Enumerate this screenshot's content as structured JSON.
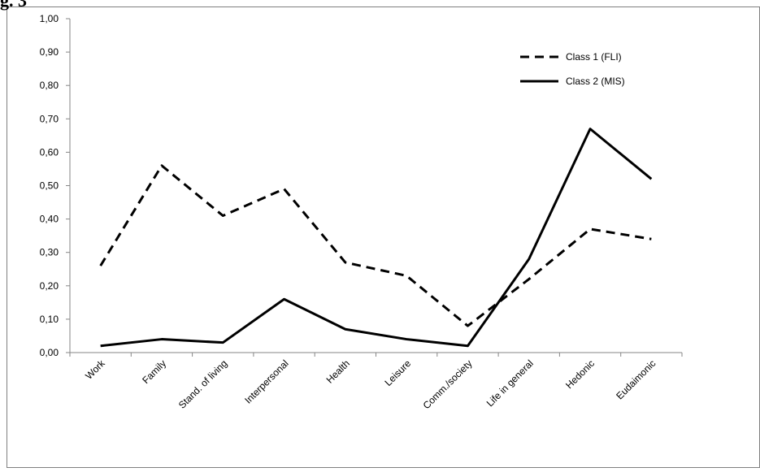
{
  "figure_label": "g. 3",
  "chart_data": {
    "type": "line",
    "categories": [
      "Work",
      "Family",
      "Stand. of living",
      "Interpersonal",
      "Health",
      "Leisure",
      "Comm./society",
      "Life in general",
      "Hedonic",
      "Eudaimonic"
    ],
    "series": [
      {
        "name": "Class 1 (FLI)",
        "style": "dashed",
        "color": "#000000",
        "values": [
          0.26,
          0.56,
          0.41,
          0.49,
          0.27,
          0.23,
          0.08,
          0.22,
          0.37,
          0.34
        ]
      },
      {
        "name": "Class 2 (MIS)",
        "style": "solid",
        "color": "#000000",
        "values": [
          0.02,
          0.04,
          0.03,
          0.16,
          0.07,
          0.04,
          0.02,
          0.28,
          0.67,
          0.52
        ]
      }
    ],
    "y_ticks": [
      "0,00",
      "0,10",
      "0,20",
      "0,30",
      "0,40",
      "0,50",
      "0,60",
      "0,70",
      "0,80",
      "0,90",
      "1,00"
    ],
    "ylim": [
      0,
      1
    ],
    "title": "",
    "xlabel": "",
    "ylabel": "",
    "grid": false,
    "legend_position": "top-right"
  }
}
